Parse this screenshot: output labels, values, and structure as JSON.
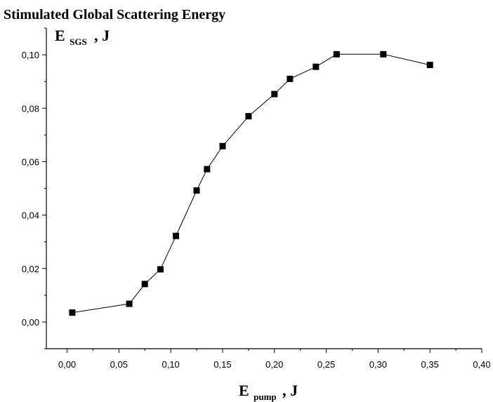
{
  "chart_data": {
    "type": "scatter",
    "title": "Stimulated Global Scattering Energy",
    "ylabel": {
      "main": "E",
      "sub": "SGS",
      "suffix": ", J"
    },
    "xlabel": {
      "main": "E",
      "sub": "pump",
      "suffix": ", J"
    },
    "xlim": [
      -0.02,
      0.4
    ],
    "ylim": [
      -0.01,
      0.11
    ],
    "x_ticks": [
      {
        "value": 0.0,
        "label": "0,00"
      },
      {
        "value": 0.05,
        "label": "0,05"
      },
      {
        "value": 0.1,
        "label": "0,10"
      },
      {
        "value": 0.15,
        "label": "0,15"
      },
      {
        "value": 0.2,
        "label": "0,20"
      },
      {
        "value": 0.25,
        "label": "0,25"
      },
      {
        "value": 0.3,
        "label": "0,30"
      },
      {
        "value": 0.35,
        "label": "0,35"
      },
      {
        "value": 0.4,
        "label": "0,40"
      }
    ],
    "y_ticks": [
      {
        "value": 0.0,
        "label": "0,00"
      },
      {
        "value": 0.02,
        "label": "0,02"
      },
      {
        "value": 0.04,
        "label": "0,04"
      },
      {
        "value": 0.06,
        "label": "0,06"
      },
      {
        "value": 0.08,
        "label": "0,08"
      },
      {
        "value": 0.1,
        "label": "0,10"
      }
    ],
    "grid": false,
    "marker": "square",
    "connected": true,
    "series": [
      {
        "x": [
          0.005,
          0.06,
          0.075,
          0.09,
          0.105,
          0.125,
          0.135,
          0.15,
          0.175,
          0.2,
          0.215,
          0.24,
          0.26,
          0.305,
          0.35
        ],
        "y": [
          0.0035,
          0.0068,
          0.0142,
          0.0197,
          0.0322,
          0.0492,
          0.0572,
          0.0658,
          0.077,
          0.0853,
          0.091,
          0.0955,
          0.1002,
          0.1002,
          0.0962
        ]
      }
    ]
  }
}
